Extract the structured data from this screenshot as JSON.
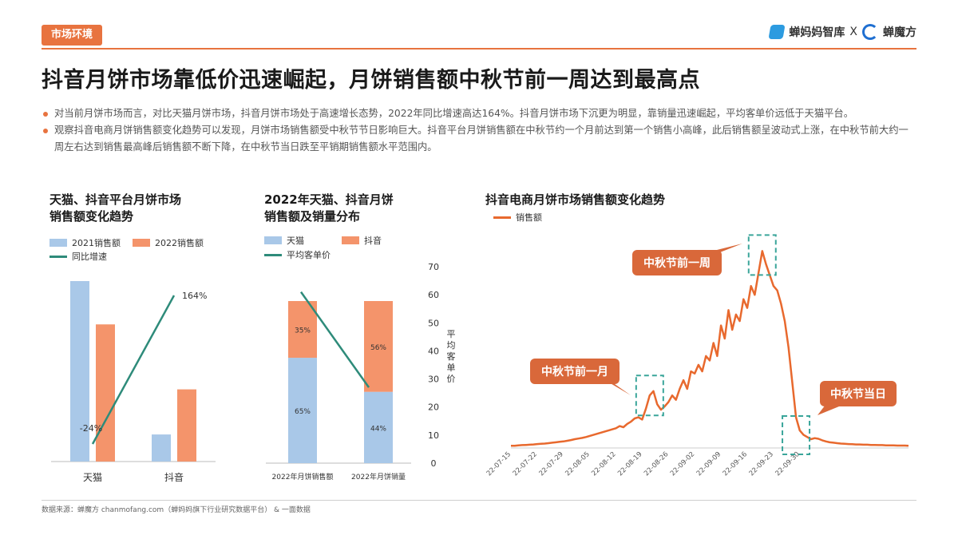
{
  "header": {
    "section_tag": "市场环境",
    "brand_left": "蝉妈妈智库",
    "brand_x": "X",
    "brand_right": "蝉魔方"
  },
  "title": "抖音月饼市场靠低价迅速崛起，月饼销售额中秋节前一周达到最高点",
  "bullets": [
    "对当前月饼市场而言，对比天猫月饼市场，抖音月饼市场处于高速增长态势，2022年同比增速高达164%。抖音月饼市场下沉更为明显，靠销量迅速崛起，平均客单价远低于天猫平台。",
    "观察抖音电商月饼销售额变化趋势可以发现，月饼市场销售额受中秋节节日影响巨大。抖音平台月饼销售额在中秋节约一个月前达到第一个销售小高峰，此后销售额呈波动式上涨，在中秋节前大约一周左右达到销售最高峰后销售额不断下降，在中秋节当日跌至平销期销售额水平范围内。"
  ],
  "source": "数据来源：蝉魔方 chanmofang.com（蝉妈妈旗下行业研究数据平台） & 一面数据",
  "colors": {
    "accent": "#e8733f",
    "blue": "#a9c8e8",
    "orange": "#f4946b",
    "teal": "#2e8b7a",
    "line": "#e8692e"
  },
  "chart_data": [
    {
      "type": "bar",
      "title_lines": [
        "天猫、抖音平台月饼市场",
        "销售额变化趋势"
      ],
      "legend": [
        "2021销售额",
        "2022销售额",
        "同比增速"
      ],
      "categories": [
        "天猫",
        "抖音"
      ],
      "series": [
        {
          "name": "2021销售额",
          "values": [
            100,
            15
          ]
        },
        {
          "name": "2022销售额",
          "values": [
            76,
            40
          ]
        }
      ],
      "line_series": {
        "name": "同比增速",
        "values": [
          -24,
          164
        ],
        "labels": [
          "-24%",
          "164%"
        ]
      },
      "note": "relative sales scale, unlabeled axis"
    },
    {
      "type": "bar",
      "stacked": true,
      "title_lines": [
        "2022年天猫、抖音月饼",
        "销售额及销量分布"
      ],
      "legend": [
        "天猫",
        "抖音",
        "平均客单价"
      ],
      "categories": [
        "2022年月饼销售额",
        "2022年月饼销量"
      ],
      "series": [
        {
          "name": "天猫",
          "values": [
            65,
            44
          ],
          "labels": [
            "65%",
            "44%"
          ]
        },
        {
          "name": "抖音",
          "values": [
            35,
            56
          ],
          "labels": [
            "35%",
            "56%"
          ]
        }
      ],
      "line_series": {
        "name": "平均客单价",
        "values": [
          61,
          27
        ]
      },
      "y2_label": "平均客单价",
      "y2_ticks": [
        "0",
        "10",
        "20",
        "30",
        "40",
        "50",
        "60",
        "70"
      ],
      "y2lim": [
        0,
        70
      ]
    },
    {
      "type": "line",
      "title": "抖音电商月饼市场销售额变化趋势",
      "legend": [
        "销售额"
      ],
      "x_ticks": [
        "22-07-15",
        "22-07-22",
        "22-07-29",
        "22-08-05",
        "22-08-12",
        "22-08-19",
        "22-08-26",
        "22-09-02",
        "22-09-09",
        "22-09-16",
        "22-09-23",
        "22-09-30"
      ],
      "x_start": "22-07-15",
      "ylim": [
        0,
        100
      ],
      "values": [
        1,
        1,
        1.2,
        1.3,
        1.4,
        1.5,
        1.6,
        1.8,
        1.9,
        2,
        2.2,
        2.4,
        2.6,
        2.8,
        3,
        3.3,
        3.6,
        4,
        4.3,
        4.6,
        5,
        5.5,
        6,
        6.5,
        7,
        7.5,
        8,
        8.5,
        9,
        10,
        9.5,
        11,
        12,
        13.5,
        14,
        13,
        18,
        24,
        26,
        20,
        17.5,
        19,
        21,
        24,
        22,
        27,
        31,
        27,
        35,
        34,
        38,
        35,
        42,
        40,
        48,
        42,
        56,
        50,
        63,
        54,
        61,
        58,
        68,
        64,
        74,
        70,
        80,
        90,
        84,
        79,
        74,
        72,
        66,
        58,
        46,
        30,
        14,
        8,
        6,
        5,
        4,
        4.5,
        4.2,
        3.5,
        3,
        2.6,
        2.4,
        2.2,
        2,
        1.9,
        1.8,
        1.7,
        1.6,
        1.6,
        1.5,
        1.5,
        1.4,
        1.4,
        1.3,
        1.3,
        1.2,
        1.2,
        1.2,
        1.1,
        1.1,
        1.1,
        1
      ],
      "annotations": [
        {
          "label": "中秋节前一月",
          "index": 37
        },
        {
          "label": "中秋节前一周",
          "index": 67
        },
        {
          "label": "中秋节当日",
          "index": 76
        }
      ]
    }
  ]
}
